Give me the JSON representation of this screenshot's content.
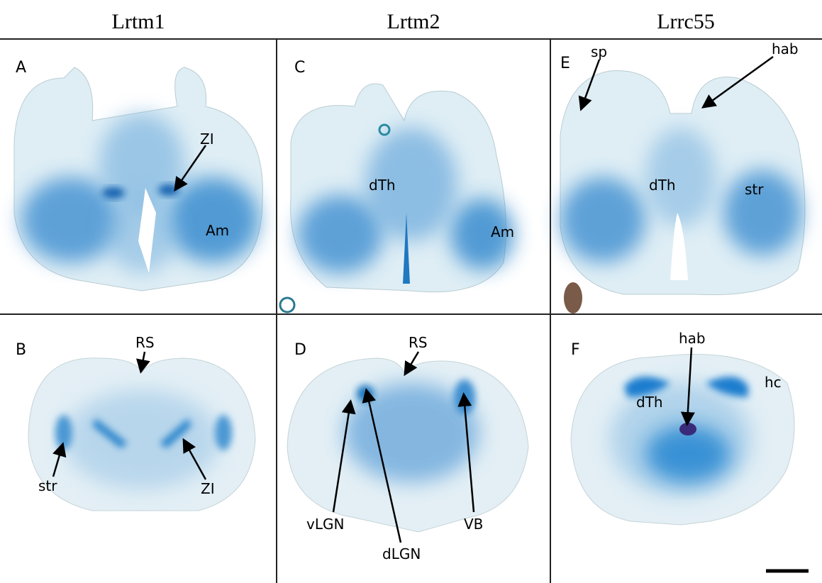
{
  "headers": [
    "Lrtm1",
    "Lrtm2",
    "Lrrc55"
  ],
  "panels": [
    {
      "letter": "A",
      "labels": [
        "ZI",
        "Am"
      ]
    },
    {
      "letter": "C",
      "labels": [
        "dTh",
        "Am"
      ]
    },
    {
      "letter": "E",
      "labels": [
        "sp",
        "hab",
        "dTh",
        "str"
      ]
    },
    {
      "letter": "B",
      "labels": [
        "RS",
        "str",
        "ZI"
      ]
    },
    {
      "letter": "D",
      "labels": [
        "RS",
        "vLGN",
        "dLGN",
        "VB"
      ]
    },
    {
      "letter": "F",
      "labels": [
        "hab",
        "hc",
        "dTh"
      ]
    }
  ]
}
